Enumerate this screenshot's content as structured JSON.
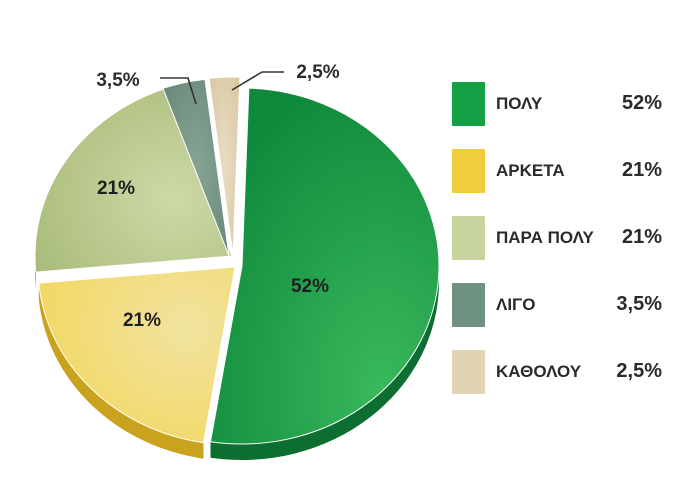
{
  "chart_data": {
    "type": "pie",
    "title": "",
    "legend_position": "right",
    "slices": [
      {
        "name": "ΠΟΛΥ",
        "value": 52,
        "label": "52%",
        "color": "#1a9a45"
      },
      {
        "name": "ΑΡΚΕΤΑ",
        "value": 21,
        "label": "21%",
        "color": "#ebc93c"
      },
      {
        "name": "ΠΑΡΑ ΠΟΛΥ",
        "value": 21,
        "label": "21%",
        "color": "#b9c98e"
      },
      {
        "name": "ΛΙΓΟ",
        "value": 3.5,
        "label": "3,5%",
        "color": "#6f9180"
      },
      {
        "name": "ΚΑΘΟΛΟΥ",
        "value": 2.5,
        "label": "2,5%",
        "color": "#dccba8"
      }
    ]
  }
}
